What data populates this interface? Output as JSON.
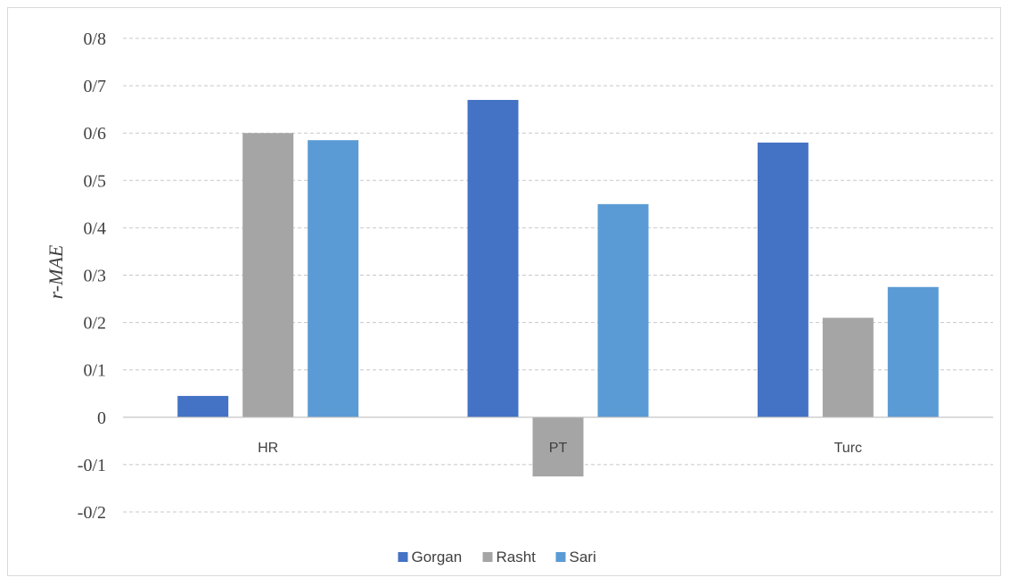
{
  "chart_data": {
    "type": "bar",
    "title": "",
    "xlabel": "",
    "ylabel": "r-MAE",
    "categories": [
      "HR",
      "PT",
      "Turc"
    ],
    "series": [
      {
        "name": "Gorgan",
        "color": "#4472c4",
        "values": [
          0.045,
          0.67,
          0.58
        ]
      },
      {
        "name": "Rasht",
        "color": "#a5a5a5",
        "values": [
          0.6,
          -0.125,
          0.21
        ]
      },
      {
        "name": "Sari",
        "color": "#5b9bd5",
        "values": [
          0.585,
          0.45,
          0.275
        ]
      }
    ],
    "ylim": [
      -0.2,
      0.8
    ],
    "yticks": [
      0.8,
      0.7,
      0.6,
      0.5,
      0.4,
      0.3,
      0.2,
      0.1,
      0,
      -0.1,
      -0.2
    ],
    "ytick_labels": [
      "0/8",
      "0/7",
      "0/6",
      "0/5",
      "0/4",
      "0/3",
      "0/2",
      "0/1",
      "0",
      "-0/1",
      "-0/2"
    ],
    "grid": true,
    "legend_position": "bottom"
  }
}
